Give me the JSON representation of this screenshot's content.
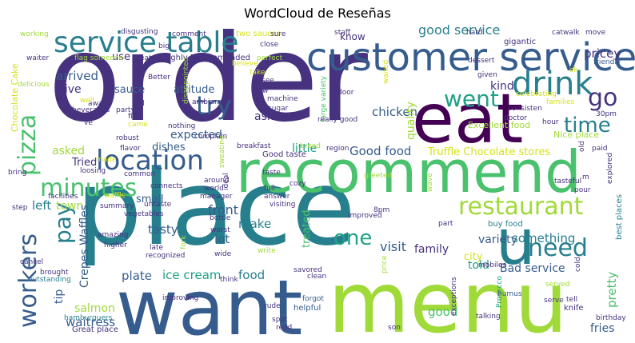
{
  "title": "WordCloud de Reseñas",
  "palette": {
    "dark_purple": "#440154",
    "indigo": "#46327e",
    "blue": "#365c8d",
    "steel": "#277f8e",
    "teal": "#1fa187",
    "green": "#4ac16d",
    "lime": "#a0da39",
    "yellow": "#d5e21a"
  },
  "words": [
    {
      "text": "order",
      "color": "#46327e"
    },
    {
      "text": "place",
      "color": "#277f8e"
    },
    {
      "text": "want",
      "color": "#365c8d"
    },
    {
      "text": "menu",
      "color": "#a0da39"
    },
    {
      "text": "recommend",
      "color": "#4ac16d"
    },
    {
      "text": "eat",
      "color": "#440154"
    },
    {
      "text": "customer service",
      "color": "#365c8d"
    },
    {
      "text": "service table",
      "color": "#277f8e"
    },
    {
      "text": "drink",
      "color": "#277f8e"
    },
    {
      "text": "location",
      "color": "#365c8d"
    },
    {
      "text": "minutes",
      "color": "#4ac16d"
    },
    {
      "text": "pizza",
      "color": "#4ac16d"
    },
    {
      "text": "workers",
      "color": "#365c8d"
    },
    {
      "text": "went",
      "color": "#1fa187"
    },
    {
      "text": "try",
      "color": "#365c8d"
    },
    {
      "text": "go",
      "color": "#46327e"
    },
    {
      "text": "time",
      "color": "#277f8e"
    },
    {
      "text": "restaurant",
      "color": "#a0da39"
    },
    {
      "text": "need",
      "color": "#277f8e"
    },
    {
      "text": "u",
      "color": "#277f8e"
    },
    {
      "text": "one",
      "color": "#1fa187"
    },
    {
      "text": "pay",
      "color": "#277f8e"
    },
    {
      "text": "good service",
      "color": "#277f8e"
    },
    {
      "text": "pricey",
      "color": "#46327e"
    },
    {
      "text": "know",
      "color": "#46327e"
    },
    {
      "text": "kind",
      "color": "#46327e"
    },
    {
      "text": "arrived",
      "color": "#365c8d"
    },
    {
      "text": "use",
      "color": "#46327e"
    },
    {
      "text": "give",
      "color": "#46327e"
    },
    {
      "text": "sauce",
      "color": "#365c8d"
    },
    {
      "text": "attitude",
      "color": "#365c8d"
    },
    {
      "text": "expected",
      "color": "#365c8d"
    },
    {
      "text": "ask",
      "color": "#46327e"
    },
    {
      "text": "chicken",
      "color": "#365c8d"
    },
    {
      "text": "quality",
      "color": "#a0da39"
    },
    {
      "text": "Good food",
      "color": "#365c8d"
    },
    {
      "text": "Truffle Chocolate stores",
      "color": "#d5e21a"
    },
    {
      "text": "little",
      "color": "#1fa187"
    },
    {
      "text": "dishes",
      "color": "#365c8d"
    },
    {
      "text": "Tried",
      "color": "#46327e"
    },
    {
      "text": "asked",
      "color": "#a0da39"
    },
    {
      "text": "small",
      "color": "#365c8d"
    },
    {
      "text": "front",
      "color": "#365c8d"
    },
    {
      "text": "tasty",
      "color": "#365c8d"
    },
    {
      "text": "left",
      "color": "#277f8e"
    },
    {
      "text": "town",
      "color": "#a0da39"
    },
    {
      "text": "lot",
      "color": "#365c8d"
    },
    {
      "text": "make",
      "color": "#277f8e"
    },
    {
      "text": "treated",
      "color": "#4ac16d"
    },
    {
      "text": "visit",
      "color": "#365c8d"
    },
    {
      "text": "family",
      "color": "#46327e"
    },
    {
      "text": "variety",
      "color": "#365c8d"
    },
    {
      "text": "told",
      "color": "#1fa187"
    },
    {
      "text": "something",
      "color": "#277f8e"
    },
    {
      "text": "good",
      "color": "#4ac16d"
    },
    {
      "text": "pretty",
      "color": "#4ac16d"
    },
    {
      "text": "city",
      "color": "#d5e21a"
    },
    {
      "text": "Bad service",
      "color": "#365c8d"
    },
    {
      "text": "plate",
      "color": "#365c8d"
    },
    {
      "text": "ice cream",
      "color": "#1fa187"
    },
    {
      "text": "food",
      "color": "#277f8e"
    },
    {
      "text": "tip",
      "color": "#365c8d"
    },
    {
      "text": "Crepes Waffles",
      "color": "#365c8d"
    },
    {
      "text": "salmon",
      "color": "#a0da39"
    },
    {
      "text": "waitress",
      "color": "#365c8d"
    },
    {
      "text": "fries",
      "color": "#365c8d"
    },
    {
      "text": "Excellent food",
      "color": "#a0da39"
    },
    {
      "text": "Nice place",
      "color": "#a0da39"
    },
    {
      "text": "Chocolate Cake",
      "color": "#d5e21a"
    },
    {
      "text": "Highly Recommended",
      "color": "#46327e"
    },
    {
      "text": "two sauces",
      "color": "#d5e21a"
    },
    {
      "text": "buy food",
      "color": "#277f8e"
    },
    {
      "text": "best places",
      "color": "#277f8e"
    },
    {
      "text": "Great place",
      "color": "#46327e"
    },
    {
      "text": "hamburguers",
      "color": "#277f8e"
    },
    {
      "text": "outstanding",
      "color": "#277f8e"
    },
    {
      "text": "Prosecco",
      "color": "#1fa187"
    },
    {
      "text": "birthday",
      "color": "#46327e"
    },
    {
      "text": "helpful",
      "color": "#365c8d"
    },
    {
      "text": "forgot",
      "color": "#365c8d"
    },
    {
      "text": "rude",
      "color": "#46327e"
    },
    {
      "text": "knife",
      "color": "#46327e"
    },
    {
      "text": "serve",
      "color": "#46327e"
    },
    {
      "text": "humus",
      "color": "#365c8d"
    },
    {
      "text": "tell",
      "color": "#46327e"
    },
    {
      "text": "working",
      "color": "#a0da39"
    },
    {
      "text": "disgusting",
      "color": "#46327e"
    },
    {
      "text": "catwalk",
      "color": "#46327e"
    },
    {
      "text": "gigantic",
      "color": "#46327e"
    },
    {
      "text": "delicious",
      "color": "#a0da39"
    },
    {
      "text": "friendly",
      "color": "#365c8d"
    },
    {
      "text": "waiter",
      "color": "#46327e"
    },
    {
      "text": "comment",
      "color": "#46327e"
    },
    {
      "text": "staff",
      "color": "#46327e"
    },
    {
      "text": "hard",
      "color": "#46327e"
    },
    {
      "text": "move",
      "color": "#46327e"
    },
    {
      "text": "big",
      "color": "#46327e"
    },
    {
      "text": "sure",
      "color": "#46327e"
    },
    {
      "text": "close",
      "color": "#46327e"
    },
    {
      "text": "perfect",
      "color": "#a0da39"
    },
    {
      "text": "eaten",
      "color": "#46327e"
    },
    {
      "text": "flag someone",
      "color": "#a0da39"
    },
    {
      "text": "Better",
      "color": "#46327e"
    },
    {
      "text": "take",
      "color": "#d5e21a"
    },
    {
      "text": "believe",
      "color": "#d5e21a"
    },
    {
      "text": "see",
      "color": "#46327e"
    },
    {
      "text": "law",
      "color": "#46327e"
    },
    {
      "text": "machine",
      "color": "#46327e"
    },
    {
      "text": "sugar",
      "color": "#46327e"
    },
    {
      "text": "door",
      "color": "#46327e"
    },
    {
      "text": "waited",
      "color": "#d5e21a"
    },
    {
      "text": "large variety",
      "color": "#4ac16d"
    },
    {
      "text": "beverages",
      "color": "#46327e"
    },
    {
      "text": "party",
      "color": "#46327e"
    },
    {
      "text": "disappointed",
      "color": "#a0da39"
    },
    {
      "text": "aware",
      "color": "#46327e"
    },
    {
      "text": "still",
      "color": "#46327e"
    },
    {
      "text": "enjoy",
      "color": "#46327e"
    },
    {
      "text": "fish",
      "color": "#46327e"
    },
    {
      "text": "came",
      "color": "#d5e21a"
    },
    {
      "text": "ambiance",
      "color": "#46327e"
    },
    {
      "text": "celebrating",
      "color": "#d5e21a"
    },
    {
      "text": "families",
      "color": "#d5e21a"
    },
    {
      "text": "dessert",
      "color": "#46327e"
    },
    {
      "text": "given",
      "color": "#46327e"
    },
    {
      "text": "consisten",
      "color": "#46327e"
    },
    {
      "text": "doctor",
      "color": "#46327e"
    },
    {
      "text": "hour",
      "color": "#46327e"
    },
    {
      "text": "30pm",
      "color": "#46327e"
    },
    {
      "text": "nothing",
      "color": "#46327e"
    },
    {
      "text": "complain",
      "color": "#46327e"
    },
    {
      "text": "sweating",
      "color": "#a0da39"
    },
    {
      "text": "breakfast",
      "color": "#46327e"
    },
    {
      "text": "Good taste",
      "color": "#46327e"
    },
    {
      "text": "region",
      "color": "#46327e"
    },
    {
      "text": "really good",
      "color": "#46327e"
    },
    {
      "text": "bread",
      "color": "#a0da39"
    },
    {
      "text": "flavor",
      "color": "#46327e"
    },
    {
      "text": "robust",
      "color": "#46327e"
    },
    {
      "text": "common",
      "color": "#46327e"
    },
    {
      "text": "loosing",
      "color": "#46327e"
    },
    {
      "text": "bring",
      "color": "#46327e"
    },
    {
      "text": "made",
      "color": "#d5e21a"
    },
    {
      "text": "facilities",
      "color": "#46327e"
    },
    {
      "text": "connects",
      "color": "#46327e"
    },
    {
      "text": "vegetables",
      "color": "#46327e"
    },
    {
      "text": "untaste",
      "color": "#46327e"
    },
    {
      "text": "around",
      "color": "#46327e"
    },
    {
      "text": "world",
      "color": "#46327e"
    },
    {
      "text": "manager",
      "color": "#46327e"
    },
    {
      "text": "ideal",
      "color": "#46327e"
    },
    {
      "text": "full",
      "color": "#46327e"
    },
    {
      "text": "answer",
      "color": "#46327e"
    },
    {
      "text": "taste",
      "color": "#46327e"
    },
    {
      "text": "greeted",
      "color": "#a0da39"
    },
    {
      "text": "cozy",
      "color": "#46327e"
    },
    {
      "text": "visiting",
      "color": "#46327e"
    },
    {
      "text": "step",
      "color": "#46327e"
    },
    {
      "text": "waffle",
      "color": "#d5e21a"
    },
    {
      "text": "summary",
      "color": "#46327e"
    },
    {
      "text": "amazing",
      "color": "#46327e"
    },
    {
      "text": "higher",
      "color": "#46327e"
    },
    {
      "text": "bottle",
      "color": "#46327e"
    },
    {
      "text": "worst",
      "color": "#46327e"
    },
    {
      "text": "wide",
      "color": "#46327e"
    },
    {
      "text": "write",
      "color": "#a0da39"
    },
    {
      "text": "late",
      "color": "#46327e"
    },
    {
      "text": "recognized",
      "color": "#46327e"
    },
    {
      "text": "improved",
      "color": "#46327e"
    },
    {
      "text": "8pm",
      "color": "#46327e"
    },
    {
      "text": "wave",
      "color": "#a0da39"
    },
    {
      "text": "savored",
      "color": "#46327e"
    },
    {
      "text": "clean",
      "color": "#46327e"
    },
    {
      "text": "price",
      "color": "#a0da39"
    },
    {
      "text": "cancel",
      "color": "#46327e"
    },
    {
      "text": "brought",
      "color": "#46327e"
    },
    {
      "text": "think",
      "color": "#46327e"
    },
    {
      "text": "improving",
      "color": "#46327e"
    },
    {
      "text": "spot",
      "color": "#46327e"
    },
    {
      "text": "read",
      "color": "#46327e"
    },
    {
      "text": "son",
      "color": "#46327e"
    },
    {
      "text": "exceptions",
      "color": "#46327e"
    },
    {
      "text": "mobiles",
      "color": "#46327e"
    },
    {
      "text": "talking",
      "color": "#46327e"
    },
    {
      "text": "served",
      "color": "#a0da39"
    },
    {
      "text": "cold",
      "color": "#46327e"
    },
    {
      "text": "paid",
      "color": "#46327e"
    },
    {
      "text": "explored",
      "color": "#46327e"
    },
    {
      "text": "tasteful",
      "color": "#46327e"
    },
    {
      "text": "pour",
      "color": "#46327e"
    },
    {
      "text": "old",
      "color": "#46327e"
    },
    {
      "text": "part",
      "color": "#46327e"
    },
    {
      "text": "fork",
      "color": "#a0da39"
    },
    {
      "text": "ve",
      "color": "#46327e"
    },
    {
      "text": "well",
      "color": "#d5e21a"
    },
    {
      "text": "ok",
      "color": "#d5e21a"
    },
    {
      "text": "m",
      "color": "#46327e"
    }
  ]
}
